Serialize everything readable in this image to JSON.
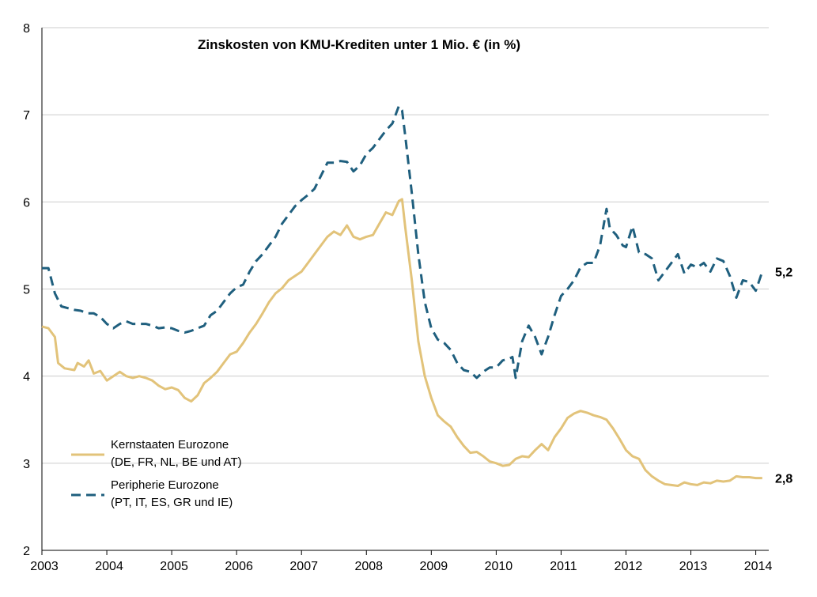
{
  "chart_data": {
    "type": "line",
    "title": "Zinskosten von KMU-Krediten unter 1 Mio. € (in %)",
    "xlabel": "",
    "ylabel": "",
    "xlim": [
      2003,
      2014.2
    ],
    "ylim": [
      2,
      8
    ],
    "x_ticks": [
      "2003",
      "2004",
      "2005",
      "2006",
      "2007",
      "2008",
      "2009",
      "2010",
      "2011",
      "2012",
      "2013",
      "2014"
    ],
    "y_ticks": [
      "2",
      "3",
      "4",
      "5",
      "6",
      "7",
      "8"
    ],
    "grid": true,
    "colors": {
      "core": "#e2c37a",
      "periphery": "#1f5f7e",
      "grid": "#cccccc",
      "axis": "#000000"
    },
    "series": [
      {
        "name": "Kernstaaten Eurozone",
        "legend": [
          "Kernstaaten Eurozone",
          "(DE, FR, NL, BE und AT)"
        ],
        "style": "solid",
        "end_label": "2,8",
        "points": [
          [
            2003.0,
            4.57
          ],
          [
            2003.1,
            4.55
          ],
          [
            2003.2,
            4.45
          ],
          [
            2003.25,
            4.15
          ],
          [
            2003.35,
            4.09
          ],
          [
            2003.5,
            4.07
          ],
          [
            2003.55,
            4.15
          ],
          [
            2003.65,
            4.11
          ],
          [
            2003.72,
            4.18
          ],
          [
            2003.8,
            4.03
          ],
          [
            2003.9,
            4.06
          ],
          [
            2004.0,
            3.95
          ],
          [
            2004.1,
            4.0
          ],
          [
            2004.2,
            4.05
          ],
          [
            2004.3,
            4.0
          ],
          [
            2004.4,
            3.98
          ],
          [
            2004.5,
            4.0
          ],
          [
            2004.6,
            3.98
          ],
          [
            2004.7,
            3.95
          ],
          [
            2004.8,
            3.89
          ],
          [
            2004.9,
            3.85
          ],
          [
            2005.0,
            3.87
          ],
          [
            2005.1,
            3.84
          ],
          [
            2005.2,
            3.75
          ],
          [
            2005.3,
            3.71
          ],
          [
            2005.4,
            3.78
          ],
          [
            2005.5,
            3.92
          ],
          [
            2005.6,
            3.98
          ],
          [
            2005.7,
            4.05
          ],
          [
            2005.8,
            4.15
          ],
          [
            2005.9,
            4.25
          ],
          [
            2006.0,
            4.28
          ],
          [
            2006.1,
            4.38
          ],
          [
            2006.2,
            4.5
          ],
          [
            2006.3,
            4.6
          ],
          [
            2006.4,
            4.72
          ],
          [
            2006.5,
            4.85
          ],
          [
            2006.6,
            4.95
          ],
          [
            2006.7,
            5.01
          ],
          [
            2006.8,
            5.1
          ],
          [
            2006.9,
            5.15
          ],
          [
            2007.0,
            5.2
          ],
          [
            2007.1,
            5.3
          ],
          [
            2007.2,
            5.4
          ],
          [
            2007.3,
            5.5
          ],
          [
            2007.4,
            5.6
          ],
          [
            2007.5,
            5.66
          ],
          [
            2007.6,
            5.62
          ],
          [
            2007.7,
            5.73
          ],
          [
            2007.8,
            5.6
          ],
          [
            2007.9,
            5.57
          ],
          [
            2008.0,
            5.6
          ],
          [
            2008.1,
            5.62
          ],
          [
            2008.2,
            5.75
          ],
          [
            2008.3,
            5.88
          ],
          [
            2008.4,
            5.85
          ],
          [
            2008.5,
            6.01
          ],
          [
            2008.55,
            6.03
          ],
          [
            2008.6,
            5.7
          ],
          [
            2008.7,
            5.1
          ],
          [
            2008.8,
            4.4
          ],
          [
            2008.9,
            4.0
          ],
          [
            2009.0,
            3.75
          ],
          [
            2009.1,
            3.55
          ],
          [
            2009.2,
            3.48
          ],
          [
            2009.3,
            3.42
          ],
          [
            2009.4,
            3.3
          ],
          [
            2009.5,
            3.2
          ],
          [
            2009.6,
            3.12
          ],
          [
            2009.7,
            3.13
          ],
          [
            2009.8,
            3.08
          ],
          [
            2009.9,
            3.02
          ],
          [
            2010.0,
            3.0
          ],
          [
            2010.1,
            2.97
          ],
          [
            2010.2,
            2.98
          ],
          [
            2010.3,
            3.05
          ],
          [
            2010.4,
            3.08
          ],
          [
            2010.5,
            3.07
          ],
          [
            2010.6,
            3.15
          ],
          [
            2010.7,
            3.22
          ],
          [
            2010.8,
            3.15
          ],
          [
            2010.9,
            3.3
          ],
          [
            2011.0,
            3.4
          ],
          [
            2011.1,
            3.52
          ],
          [
            2011.2,
            3.57
          ],
          [
            2011.3,
            3.6
          ],
          [
            2011.4,
            3.58
          ],
          [
            2011.5,
            3.55
          ],
          [
            2011.6,
            3.53
          ],
          [
            2011.7,
            3.5
          ],
          [
            2011.8,
            3.4
          ],
          [
            2011.9,
            3.28
          ],
          [
            2012.0,
            3.15
          ],
          [
            2012.1,
            3.08
          ],
          [
            2012.2,
            3.05
          ],
          [
            2012.3,
            2.92
          ],
          [
            2012.4,
            2.85
          ],
          [
            2012.5,
            2.8
          ],
          [
            2012.6,
            2.76
          ],
          [
            2012.7,
            2.75
          ],
          [
            2012.8,
            2.74
          ],
          [
            2012.9,
            2.78
          ],
          [
            2013.0,
            2.76
          ],
          [
            2013.1,
            2.75
          ],
          [
            2013.2,
            2.78
          ],
          [
            2013.3,
            2.77
          ],
          [
            2013.4,
            2.8
          ],
          [
            2013.5,
            2.79
          ],
          [
            2013.6,
            2.8
          ],
          [
            2013.7,
            2.85
          ],
          [
            2013.8,
            2.84
          ],
          [
            2013.9,
            2.84
          ],
          [
            2014.0,
            2.83
          ],
          [
            2014.1,
            2.83
          ]
        ]
      },
      {
        "name": "Peripherie Eurozone",
        "legend": [
          "Peripherie Eurozone",
          "(PT, IT, ES, GR und IE)"
        ],
        "style": "dashed",
        "end_label": "5,2",
        "points": [
          [
            2003.0,
            5.24
          ],
          [
            2003.1,
            5.24
          ],
          [
            2003.2,
            4.95
          ],
          [
            2003.3,
            4.8
          ],
          [
            2003.4,
            4.78
          ],
          [
            2003.5,
            4.76
          ],
          [
            2003.6,
            4.75
          ],
          [
            2003.7,
            4.72
          ],
          [
            2003.8,
            4.72
          ],
          [
            2003.9,
            4.68
          ],
          [
            2004.0,
            4.6
          ],
          [
            2004.1,
            4.55
          ],
          [
            2004.2,
            4.6
          ],
          [
            2004.3,
            4.63
          ],
          [
            2004.4,
            4.6
          ],
          [
            2004.5,
            4.6
          ],
          [
            2004.6,
            4.6
          ],
          [
            2004.7,
            4.58
          ],
          [
            2004.8,
            4.55
          ],
          [
            2004.9,
            4.56
          ],
          [
            2005.0,
            4.55
          ],
          [
            2005.1,
            4.52
          ],
          [
            2005.2,
            4.5
          ],
          [
            2005.3,
            4.52
          ],
          [
            2005.4,
            4.55
          ],
          [
            2005.5,
            4.58
          ],
          [
            2005.6,
            4.7
          ],
          [
            2005.7,
            4.75
          ],
          [
            2005.8,
            4.85
          ],
          [
            2005.9,
            4.95
          ],
          [
            2006.0,
            5.02
          ],
          [
            2006.1,
            5.05
          ],
          [
            2006.2,
            5.2
          ],
          [
            2006.3,
            5.32
          ],
          [
            2006.4,
            5.4
          ],
          [
            2006.5,
            5.5
          ],
          [
            2006.6,
            5.6
          ],
          [
            2006.7,
            5.75
          ],
          [
            2006.8,
            5.85
          ],
          [
            2006.9,
            5.95
          ],
          [
            2007.0,
            6.02
          ],
          [
            2007.1,
            6.08
          ],
          [
            2007.2,
            6.15
          ],
          [
            2007.3,
            6.3
          ],
          [
            2007.4,
            6.45
          ],
          [
            2007.5,
            6.45
          ],
          [
            2007.6,
            6.47
          ],
          [
            2007.7,
            6.46
          ],
          [
            2007.8,
            6.35
          ],
          [
            2007.9,
            6.42
          ],
          [
            2008.0,
            6.55
          ],
          [
            2008.1,
            6.62
          ],
          [
            2008.2,
            6.72
          ],
          [
            2008.3,
            6.82
          ],
          [
            2008.4,
            6.9
          ],
          [
            2008.5,
            7.1
          ],
          [
            2008.55,
            7.05
          ],
          [
            2008.6,
            6.75
          ],
          [
            2008.7,
            6.1
          ],
          [
            2008.8,
            5.4
          ],
          [
            2008.9,
            4.85
          ],
          [
            2009.0,
            4.55
          ],
          [
            2009.1,
            4.42
          ],
          [
            2009.2,
            4.38
          ],
          [
            2009.3,
            4.3
          ],
          [
            2009.4,
            4.15
          ],
          [
            2009.5,
            4.07
          ],
          [
            2009.6,
            4.05
          ],
          [
            2009.7,
            3.98
          ],
          [
            2009.8,
            4.05
          ],
          [
            2009.9,
            4.1
          ],
          [
            2010.0,
            4.1
          ],
          [
            2010.1,
            4.18
          ],
          [
            2010.2,
            4.2
          ],
          [
            2010.25,
            4.22
          ],
          [
            2010.3,
            3.98
          ],
          [
            2010.4,
            4.4
          ],
          [
            2010.5,
            4.58
          ],
          [
            2010.6,
            4.45
          ],
          [
            2010.7,
            4.25
          ],
          [
            2010.8,
            4.45
          ],
          [
            2010.9,
            4.7
          ],
          [
            2011.0,
            4.92
          ],
          [
            2011.1,
            5.0
          ],
          [
            2011.2,
            5.1
          ],
          [
            2011.3,
            5.25
          ],
          [
            2011.4,
            5.3
          ],
          [
            2011.5,
            5.3
          ],
          [
            2011.6,
            5.5
          ],
          [
            2011.7,
            5.92
          ],
          [
            2011.75,
            5.7
          ],
          [
            2011.85,
            5.62
          ],
          [
            2011.95,
            5.5
          ],
          [
            2012.0,
            5.48
          ],
          [
            2012.1,
            5.72
          ],
          [
            2012.2,
            5.42
          ],
          [
            2012.3,
            5.4
          ],
          [
            2012.4,
            5.35
          ],
          [
            2012.5,
            5.1
          ],
          [
            2012.6,
            5.2
          ],
          [
            2012.7,
            5.3
          ],
          [
            2012.8,
            5.4
          ],
          [
            2012.9,
            5.18
          ],
          [
            2013.0,
            5.28
          ],
          [
            2013.1,
            5.25
          ],
          [
            2013.2,
            5.3
          ],
          [
            2013.3,
            5.2
          ],
          [
            2013.4,
            5.35
          ],
          [
            2013.5,
            5.32
          ],
          [
            2013.6,
            5.15
          ],
          [
            2013.7,
            4.9
          ],
          [
            2013.8,
            5.1
          ],
          [
            2013.9,
            5.08
          ],
          [
            2014.0,
            4.98
          ],
          [
            2014.1,
            5.2
          ]
        ]
      }
    ]
  }
}
